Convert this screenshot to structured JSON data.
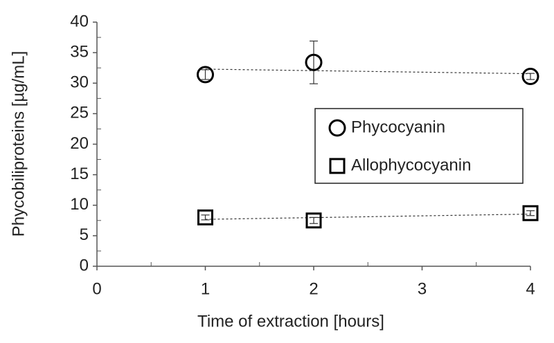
{
  "chart_data": {
    "type": "scatter",
    "xlabel": "Time of extraction [hours]",
    "ylabel": "Phycobiliproteins [µg/mL]",
    "xlim": [
      0,
      4
    ],
    "xticks": [
      0,
      1,
      2,
      3,
      4
    ],
    "ylim": [
      0,
      40
    ],
    "yticks": [
      0,
      5,
      10,
      15,
      20,
      25,
      30,
      35,
      40
    ],
    "legend": "right",
    "series": [
      {
        "name": "Phycocyanin",
        "color": "#000000",
        "marker": "circle",
        "trendline": true,
        "x": [
          1,
          2,
          4
        ],
        "values": [
          31.4,
          33.4,
          31.1
        ],
        "errors": [
          0.8,
          3.5,
          0.5
        ]
      },
      {
        "name": "Allophycocyanin",
        "color": "#000000",
        "marker": "square",
        "trendline": true,
        "x": [
          1,
          2,
          4
        ],
        "values": [
          8.0,
          7.5,
          8.7
        ],
        "errors": [
          0.4,
          0.5,
          0.4
        ]
      }
    ]
  }
}
